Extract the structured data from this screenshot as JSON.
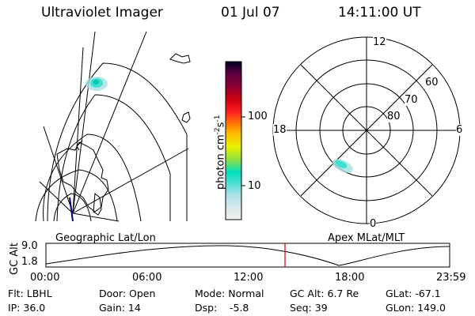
{
  "header": {
    "instrument": "Ultraviolet Imager",
    "date": "01 Jul 07",
    "time": "14:11:00 UT"
  },
  "colorbar": {
    "label": "photon cm",
    "label_exp1": "-2",
    "label_mid": "s",
    "label_exp2": "-1",
    "ticks": [
      "100",
      "10"
    ],
    "colors": [
      "#f0f0f0",
      "#d8e8ec",
      "#a8e0e6",
      "#40e0d0",
      "#00e0c0",
      "#90e040",
      "#e8f000",
      "#ffc000",
      "#ff8000",
      "#ff2020",
      "#d00010",
      "#900030",
      "#600040",
      "#300040",
      "#000020"
    ]
  },
  "geo_map": {
    "label": "Geographic Lat/Lon"
  },
  "polar_plot": {
    "label": "Apex MLat/MLT",
    "mlt_labels": [
      "12",
      "18",
      "6",
      "0"
    ],
    "lat_labels": [
      "60",
      "70",
      "80"
    ]
  },
  "timeline": {
    "ylabel": "GC Alt",
    "y_ticks": [
      "9.0",
      "1.8"
    ],
    "x_ticks": [
      "00:00",
      "06:00",
      "12:00",
      "18:00",
      "23:59"
    ],
    "marker_time": "14:11",
    "marker_color": "#d00000"
  },
  "status": {
    "flt": "Flt: LBHL",
    "door": "Door: Open",
    "mode": "Mode: Normal",
    "gc_alt": "GC Alt: 6.7 Re",
    "glat": "GLat: -67.1",
    "ip": "IP: 36.0",
    "gain": "Gain: 14",
    "dsp_label": "Dsp:",
    "dsp_value": "-5.8",
    "seq": "Seq: 39",
    "glon": "GLon: 149.0"
  }
}
